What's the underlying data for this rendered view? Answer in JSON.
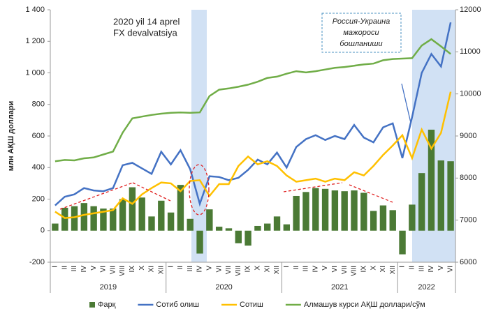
{
  "chart_data": {
    "type": "bar-line",
    "ylabel": "млн АҚШ доллари",
    "annotation_1": [
      "2020 yil 14 aprel",
      "FX devalvatsiya"
    ],
    "annotation_2": [
      "Россия-Украина",
      "мажороси",
      "бошланиши"
    ],
    "categories": [
      "I",
      "II",
      "III",
      "IV",
      "V",
      "VI",
      "VII",
      "VIII",
      "IX",
      "X",
      "XI",
      "XII",
      "I",
      "II",
      "III",
      "IV",
      "V",
      "VI",
      "VII",
      "VIII",
      "IX",
      "X",
      "XI",
      "XII",
      "I",
      "II",
      "III",
      "IV",
      "V",
      "VI",
      "VII",
      "VIII",
      "IX",
      "X",
      "XI",
      "XII",
      "I",
      "II",
      "III",
      "IV",
      "V",
      "VI"
    ],
    "groups": [
      {
        "label": "2019",
        "size": 12
      },
      {
        "label": "2020",
        "size": 12
      },
      {
        "label": "2021",
        "size": 12
      },
      {
        "label": "2022",
        "size": 6
      }
    ],
    "ylim": [
      -200,
      1400
    ],
    "yticks": [
      -200,
      0,
      200,
      400,
      600,
      800,
      {
        "value": 1000,
        "label": "1 000"
      },
      {
        "value": 1200,
        "label": "1 200"
      },
      {
        "value": 1400,
        "label": "1 400"
      }
    ],
    "y2lim": [
      6000,
      12000
    ],
    "y2ticks": [
      6000,
      7000,
      8000,
      9000,
      10000,
      11000,
      12000
    ],
    "series": [
      {
        "name": "Фарқ",
        "kind": "bar",
        "color": "#4b7a35",
        "values": [
          45,
          145,
          155,
          175,
          155,
          140,
          140,
          200,
          275,
          210,
          90,
          190,
          115,
          290,
          75,
          -145,
          135,
          25,
          15,
          -80,
          -95,
          30,
          45,
          90,
          40,
          220,
          245,
          270,
          265,
          255,
          250,
          255,
          240,
          125,
          160,
          130,
          -150,
          165,
          365,
          640,
          445,
          440
        ]
      },
      {
        "name": "Сотиб олиш",
        "kind": "line",
        "color": "#4472c4",
        "values": [
          160,
          215,
          230,
          270,
          255,
          250,
          270,
          415,
          430,
          395,
          360,
          500,
          420,
          510,
          390,
          170,
          345,
          340,
          320,
          335,
          385,
          450,
          420,
          495,
          400,
          530,
          580,
          605,
          575,
          600,
          580,
          670,
          590,
          560,
          655,
          680,
          460,
          720,
          1000,
          1120,
          1040,
          1320
        ]
      },
      {
        "name": "Сотиш",
        "kind": "line",
        "color": "#ffc000",
        "values": [
          120,
          80,
          85,
          100,
          110,
          120,
          130,
          205,
          170,
          230,
          270,
          305,
          300,
          250,
          315,
          320,
          220,
          295,
          295,
          410,
          470,
          420,
          440,
          410,
          350,
          310,
          320,
          330,
          310,
          330,
          320,
          370,
          350,
          410,
          480,
          540,
          605,
          460,
          640,
          520,
          620,
          880
        ]
      },
      {
        "name": "Алмашув курси АҚШ доллари/сўм",
        "kind": "line",
        "axis": "y2",
        "color": "#70ad47",
        "values": [
          8400,
          8430,
          8420,
          8470,
          8490,
          8560,
          8630,
          9080,
          9420,
          9460,
          9500,
          9530,
          9550,
          9560,
          9550,
          9560,
          9950,
          10100,
          10130,
          10170,
          10220,
          10290,
          10380,
          10410,
          10480,
          10540,
          10510,
          10540,
          10580,
          10620,
          10640,
          10670,
          10700,
          10720,
          10800,
          10830,
          10840,
          10850,
          11150,
          11300,
          11130,
          10950
        ]
      }
    ]
  }
}
